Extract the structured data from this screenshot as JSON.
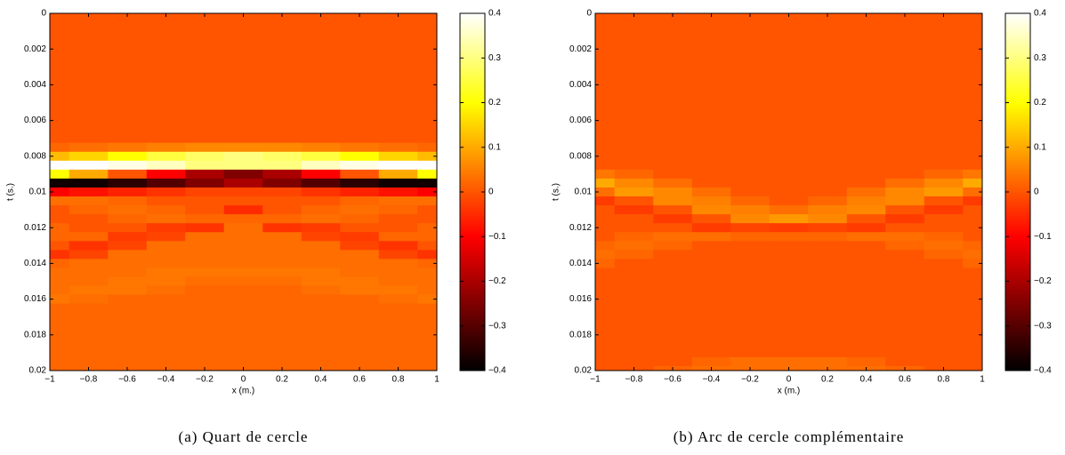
{
  "chart_data": [
    {
      "type": "heatmap",
      "caption": "(a) Quart de cercle",
      "xlabel": "x (m.)",
      "ylabel": "t (s.)",
      "colormap": "hot",
      "y_reversed": true,
      "x": [
        -1,
        -0.8,
        -0.6,
        -0.4,
        -0.2,
        0,
        0.2,
        0.4,
        0.6,
        0.8,
        1
      ],
      "y": [
        0,
        0.0005,
        0.001,
        0.0015,
        0.002,
        0.0025,
        0.003,
        0.0035,
        0.004,
        0.0045,
        0.005,
        0.0055,
        0.006,
        0.0065,
        0.007,
        0.0075,
        0.008,
        0.0085,
        0.009,
        0.0095,
        0.01,
        0.0105,
        0.011,
        0.0115,
        0.012,
        0.0125,
        0.013,
        0.0135,
        0.014,
        0.0145,
        0.015,
        0.0155,
        0.016,
        0.0165,
        0.017,
        0.0175,
        0.018,
        0.0185,
        0.019,
        0.0195,
        0.02
      ],
      "z": [
        [
          0,
          0,
          0,
          0,
          0,
          0,
          0,
          0,
          0,
          0,
          0
        ],
        [
          0,
          0,
          0,
          0,
          0,
          0,
          0,
          0,
          0,
          0,
          0
        ],
        [
          0,
          0,
          0,
          0,
          0,
          0,
          0,
          0,
          0,
          0,
          0
        ],
        [
          0,
          0,
          0,
          0,
          0,
          0,
          0,
          0,
          0,
          0,
          0
        ],
        [
          0,
          0,
          0,
          0,
          0,
          0,
          0,
          0,
          0,
          0,
          0
        ],
        [
          0,
          0,
          0,
          0,
          0,
          0,
          0,
          0,
          0,
          0,
          0
        ],
        [
          0,
          0,
          0,
          0,
          0,
          0,
          0,
          0,
          0,
          0,
          0
        ],
        [
          0,
          0,
          0,
          0,
          0,
          0,
          0,
          0,
          0,
          0,
          0
        ],
        [
          0,
          0,
          0,
          0,
          0,
          0,
          0,
          0,
          0,
          0,
          0
        ],
        [
          0,
          0,
          0,
          0,
          0,
          0,
          0,
          0,
          0,
          0,
          0
        ],
        [
          0,
          0,
          0,
          0,
          0,
          0,
          0,
          0,
          0,
          0,
          0
        ],
        [
          0,
          0,
          0,
          0,
          0,
          0,
          0,
          0,
          0,
          0,
          0
        ],
        [
          0,
          0,
          0,
          0,
          0,
          0,
          0,
          0,
          0,
          0,
          0
        ],
        [
          0,
          0,
          0,
          0,
          0,
          0,
          0,
          0,
          0,
          0,
          0
        ],
        [
          0,
          0,
          0,
          0,
          0,
          0,
          0,
          0,
          0,
          0,
          0
        ],
        [
          0.02,
          0.03,
          0.04,
          0.05,
          0.06,
          0.06,
          0.06,
          0.05,
          0.04,
          0.03,
          0.02
        ],
        [
          0.12,
          0.15,
          0.2,
          0.25,
          0.28,
          0.3,
          0.28,
          0.25,
          0.2,
          0.15,
          0.12
        ],
        [
          0.4,
          0.4,
          0.38,
          0.35,
          0.3,
          0.3,
          0.3,
          0.35,
          0.38,
          0.4,
          0.4
        ],
        [
          0.2,
          0.1,
          0,
          -0.1,
          -0.2,
          -0.25,
          -0.2,
          -0.1,
          0,
          0.1,
          0.2
        ],
        [
          -0.38,
          -0.38,
          -0.35,
          -0.3,
          -0.25,
          -0.2,
          -0.25,
          -0.3,
          -0.35,
          -0.38,
          -0.38
        ],
        [
          -0.1,
          -0.08,
          -0.06,
          -0.04,
          -0.02,
          -0.02,
          -0.02,
          -0.04,
          -0.06,
          -0.08,
          -0.1
        ],
        [
          0.03,
          0.03,
          0.02,
          0,
          0,
          0,
          0,
          0,
          0.02,
          0.03,
          0.03
        ],
        [
          0,
          0.02,
          0.03,
          0.02,
          0,
          -0.05,
          0,
          0.02,
          0.03,
          0.02,
          0
        ],
        [
          0,
          0,
          0.02,
          0.03,
          0.02,
          0.02,
          0.02,
          0.03,
          0.02,
          0,
          0
        ],
        [
          0.02,
          0,
          0,
          -0.03,
          -0.04,
          0.03,
          -0.04,
          -0.03,
          0,
          0,
          0.02
        ],
        [
          0.02,
          0.02,
          -0.03,
          -0.02,
          0.03,
          0.03,
          0.03,
          -0.02,
          -0.03,
          0.02,
          0.02
        ],
        [
          0,
          -0.04,
          -0.02,
          0.03,
          0.03,
          0.03,
          0.03,
          0.03,
          -0.02,
          -0.04,
          0
        ],
        [
          -0.04,
          -0.02,
          0.03,
          0.03,
          0.03,
          0.03,
          0.03,
          0.03,
          0.03,
          -0.02,
          -0.04
        ],
        [
          0.02,
          0.03,
          0.03,
          0.03,
          0.03,
          0.03,
          0.03,
          0.03,
          0.03,
          0.03,
          0.02
        ],
        [
          0.03,
          0.03,
          0.03,
          0.04,
          0.04,
          0.04,
          0.04,
          0.04,
          0.03,
          0.03,
          0.03
        ],
        [
          0.03,
          0.03,
          0.04,
          0.04,
          0.03,
          0.03,
          0.03,
          0.04,
          0.04,
          0.03,
          0.03
        ],
        [
          0.03,
          0.04,
          0.04,
          0.03,
          0.02,
          0.02,
          0.02,
          0.03,
          0.04,
          0.04,
          0.03
        ],
        [
          0.04,
          0.03,
          0.02,
          0.02,
          0.02,
          0.02,
          0.02,
          0.02,
          0.02,
          0.03,
          0.04
        ],
        [
          0.02,
          0.02,
          0.02,
          0.02,
          0.02,
          0.02,
          0.02,
          0.02,
          0.02,
          0.02,
          0.02
        ],
        [
          0.02,
          0.02,
          0.02,
          0.02,
          0.02,
          0.02,
          0.02,
          0.02,
          0.02,
          0.02,
          0.02
        ],
        [
          0.02,
          0.02,
          0.02,
          0.02,
          0.02,
          0.02,
          0.02,
          0.02,
          0.02,
          0.02,
          0.02
        ],
        [
          0.02,
          0.02,
          0.02,
          0.02,
          0.02,
          0.02,
          0.02,
          0.02,
          0.02,
          0.02,
          0.02
        ],
        [
          0.02,
          0.02,
          0.02,
          0.02,
          0.02,
          0.02,
          0.02,
          0.02,
          0.02,
          0.02,
          0.02
        ],
        [
          0.02,
          0.02,
          0.02,
          0.02,
          0.02,
          0.02,
          0.02,
          0.02,
          0.02,
          0.02,
          0.02
        ],
        [
          0.02,
          0.02,
          0.02,
          0.02,
          0.02,
          0.02,
          0.02,
          0.02,
          0.02,
          0.02,
          0.02
        ],
        [
          0.02,
          0.02,
          0.02,
          0.02,
          0.02,
          0.02,
          0.02,
          0.02,
          0.02,
          0.02,
          0.02
        ]
      ],
      "xlim": [
        -1,
        1
      ],
      "ylim": [
        0,
        0.02
      ],
      "clim": [
        -0.4,
        0.4
      ],
      "xticks": [
        {
          "value": -1,
          "label": "−1"
        },
        {
          "value": -0.8,
          "label": "−0.8"
        },
        {
          "value": -0.6,
          "label": "−0.6"
        },
        {
          "value": -0.4,
          "label": "−0.4"
        },
        {
          "value": -0.2,
          "label": "−0.2"
        },
        0,
        0.2,
        0.4,
        0.6,
        0.8,
        1
      ],
      "yticks": [
        0,
        0.002,
        0.004,
        0.006,
        0.008,
        0.01,
        0.012,
        0.014,
        0.016,
        0.018,
        0.02
      ],
      "cticks": [
        {
          "value": -0.4,
          "label": "−0.4"
        },
        {
          "value": -0.3,
          "label": "−0.3"
        },
        {
          "value": -0.2,
          "label": "−0.2"
        },
        {
          "value": -0.1,
          "label": "−0.1"
        },
        0,
        0.1,
        0.2,
        0.3,
        0.4
      ]
    },
    {
      "type": "heatmap",
      "caption": "(b) Arc de cercle complémentaire",
      "xlabel": "x (m.)",
      "ylabel": "t (s.)",
      "colormap": "hot",
      "y_reversed": true,
      "x": [
        -1,
        -0.8,
        -0.6,
        -0.4,
        -0.2,
        0,
        0.2,
        0.4,
        0.6,
        0.8,
        1
      ],
      "y": [
        0,
        0.0005,
        0.001,
        0.0015,
        0.002,
        0.0025,
        0.003,
        0.0035,
        0.004,
        0.0045,
        0.005,
        0.0055,
        0.006,
        0.0065,
        0.007,
        0.0075,
        0.008,
        0.0085,
        0.009,
        0.0095,
        0.01,
        0.0105,
        0.011,
        0.0115,
        0.012,
        0.0125,
        0.013,
        0.0135,
        0.014,
        0.0145,
        0.015,
        0.0155,
        0.016,
        0.0165,
        0.017,
        0.0175,
        0.018,
        0.0185,
        0.019,
        0.0195,
        0.02
      ],
      "z": [
        [
          0,
          0,
          0,
          0,
          0,
          0,
          0,
          0,
          0,
          0,
          0
        ],
        [
          0,
          0,
          0,
          0,
          0,
          0,
          0,
          0,
          0,
          0,
          0
        ],
        [
          0,
          0,
          0,
          0,
          0,
          0,
          0,
          0,
          0,
          0,
          0
        ],
        [
          0,
          0,
          0,
          0,
          0,
          0,
          0,
          0,
          0,
          0,
          0
        ],
        [
          0,
          0,
          0,
          0,
          0,
          0,
          0,
          0,
          0,
          0,
          0
        ],
        [
          0,
          0,
          0,
          0,
          0,
          0,
          0,
          0,
          0,
          0,
          0
        ],
        [
          0,
          0,
          0,
          0,
          0,
          0,
          0,
          0,
          0,
          0,
          0
        ],
        [
          0,
          0,
          0,
          0,
          0,
          0,
          0,
          0,
          0,
          0,
          0
        ],
        [
          0,
          0,
          0,
          0,
          0,
          0,
          0,
          0,
          0,
          0,
          0
        ],
        [
          0,
          0,
          0,
          0,
          0,
          0,
          0,
          0,
          0,
          0,
          0
        ],
        [
          0,
          0,
          0,
          0,
          0,
          0,
          0,
          0,
          0,
          0,
          0
        ],
        [
          0,
          0,
          0,
          0,
          0,
          0,
          0,
          0,
          0,
          0,
          0
        ],
        [
          0,
          0,
          0,
          0,
          0,
          0,
          0,
          0,
          0,
          0,
          0
        ],
        [
          0,
          0,
          0,
          0,
          0,
          0,
          0,
          0,
          0,
          0,
          0
        ],
        [
          0,
          0,
          0,
          0,
          0,
          0,
          0,
          0,
          0,
          0,
          0
        ],
        [
          0,
          0,
          0,
          0,
          0,
          0,
          0,
          0,
          0,
          0,
          0
        ],
        [
          0,
          0,
          0,
          0,
          0,
          0,
          0,
          0,
          0,
          0,
          0
        ],
        [
          0,
          0,
          0,
          0,
          0,
          0,
          0,
          0,
          0,
          0,
          0
        ],
        [
          0.04,
          0.02,
          0,
          0,
          0,
          0,
          0,
          0,
          0,
          0.02,
          0.04
        ],
        [
          0.1,
          0.06,
          0.03,
          0,
          0,
          0,
          0,
          0,
          0.03,
          0.06,
          0.1
        ],
        [
          0.03,
          0.08,
          0.06,
          0.03,
          0,
          0,
          0,
          0.03,
          0.06,
          0.08,
          0.03
        ],
        [
          -0.03,
          0,
          0.06,
          0.05,
          0.02,
          0,
          0.02,
          0.05,
          0.06,
          0,
          -0.03
        ],
        [
          0,
          -0.03,
          0,
          0.06,
          0.05,
          0.03,
          0.05,
          0.06,
          0,
          -0.03,
          0
        ],
        [
          0,
          0,
          -0.03,
          0,
          0.06,
          0.08,
          0.06,
          0,
          -0.03,
          0,
          0
        ],
        [
          0,
          0,
          0,
          -0.03,
          -0.02,
          -0.03,
          -0.02,
          -0.03,
          0,
          0,
          0
        ],
        [
          0,
          0.02,
          0.03,
          0.03,
          0.02,
          0.02,
          0.02,
          0.03,
          0.03,
          0.02,
          0
        ],
        [
          0.02,
          0.03,
          0.02,
          0,
          0,
          0,
          0,
          0,
          0.02,
          0.03,
          0.02
        ],
        [
          0.03,
          0.02,
          0,
          0,
          0,
          0,
          0,
          0,
          0,
          0.02,
          0.03
        ],
        [
          0.02,
          0,
          0,
          0,
          0,
          0,
          0,
          0,
          0,
          0,
          0.02
        ],
        [
          0,
          0,
          0,
          0,
          0,
          0,
          0,
          0,
          0,
          0,
          0
        ],
        [
          0,
          0,
          0,
          0,
          0,
          0,
          0,
          0,
          0,
          0,
          0
        ],
        [
          0,
          0,
          0,
          0,
          0,
          0,
          0,
          0,
          0,
          0,
          0
        ],
        [
          0,
          0,
          0,
          0,
          0,
          0,
          0,
          0,
          0,
          0,
          0
        ],
        [
          0,
          0,
          0,
          0,
          0,
          0,
          0,
          0,
          0,
          0,
          0
        ],
        [
          0,
          0,
          0,
          0,
          0,
          0,
          0,
          0,
          0,
          0,
          0
        ],
        [
          0,
          0,
          0,
          0,
          0,
          0,
          0,
          0,
          0,
          0,
          0
        ],
        [
          0,
          0,
          0,
          0,
          0,
          0,
          0,
          0,
          0,
          0,
          0
        ],
        [
          0,
          0,
          0,
          0,
          0,
          0,
          0,
          0,
          0,
          0,
          0
        ],
        [
          0,
          0,
          0,
          0,
          0,
          0,
          0,
          0,
          0,
          0,
          0
        ],
        [
          0,
          0,
          0,
          0.02,
          0.03,
          0.03,
          0.03,
          0.02,
          0,
          0,
          0
        ],
        [
          0,
          0,
          0.02,
          0.03,
          0.03,
          0.03,
          0.03,
          0.03,
          0.02,
          0,
          0
        ]
      ],
      "xlim": [
        -1,
        1
      ],
      "ylim": [
        0,
        0.02
      ],
      "clim": [
        -0.4,
        0.4
      ],
      "xticks": [
        {
          "value": -1,
          "label": "−1"
        },
        {
          "value": -0.8,
          "label": "−0.8"
        },
        {
          "value": -0.6,
          "label": "−0.6"
        },
        {
          "value": -0.4,
          "label": "−0.4"
        },
        {
          "value": -0.2,
          "label": "−0.2"
        },
        0,
        0.2,
        0.4,
        0.6,
        0.8,
        1
      ],
      "yticks": [
        0,
        0.002,
        0.004,
        0.006,
        0.008,
        0.01,
        0.012,
        0.014,
        0.016,
        0.018,
        0.02
      ],
      "cticks": [
        {
          "value": -0.4,
          "label": "−0.4"
        },
        {
          "value": -0.3,
          "label": "−0.3"
        },
        {
          "value": -0.2,
          "label": "−0.2"
        },
        {
          "value": -0.1,
          "label": "−0.1"
        },
        0,
        0.1,
        0.2,
        0.3,
        0.4
      ]
    }
  ]
}
